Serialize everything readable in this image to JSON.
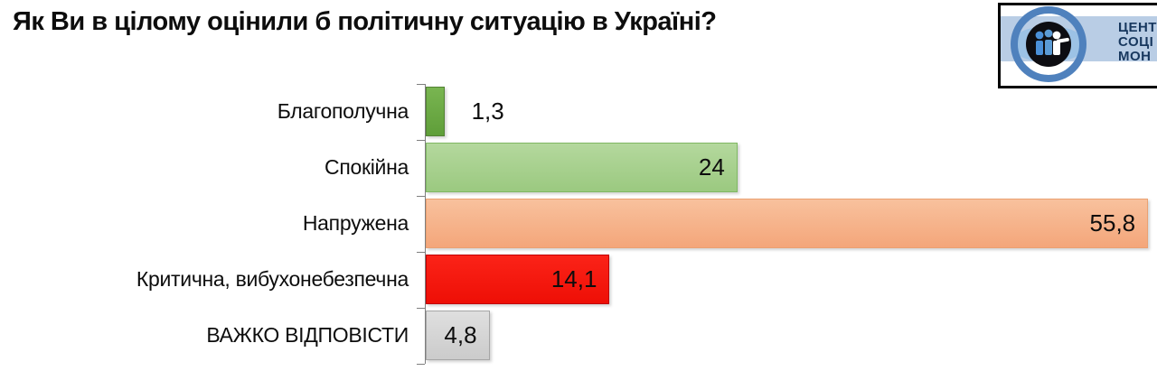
{
  "title": "Як Ви в цілому оцінили б політичну ситуацію в Україні?",
  "logo": {
    "text_lines": [
      "ЦЕНТ",
      "СОЦІ",
      "МОН"
    ],
    "colors": {
      "ring": "#4f81bd",
      "band": "#b9cde5",
      "lens": "#9cc2e5",
      "emblem_bg": "#0d0d12",
      "figure_left": "#4a90d9",
      "figure_middle": "#5b9bd5",
      "figure_right": "#ffffff",
      "text": "#17375e",
      "border": "#000000"
    }
  },
  "chart_data": {
    "type": "bar",
    "orientation": "horizontal",
    "title": "Як Ви в цілому оцінили б політичну ситуацію в Україні?",
    "categories": [
      "Благополучна",
      "Спокійна",
      "Напружена",
      "Критична, вибухонебезпечна",
      "ВАЖКО ВІДПОВІСТИ"
    ],
    "values": [
      1.3,
      24,
      55.8,
      14.1,
      4.8
    ],
    "value_labels": [
      "1,3",
      "24",
      "55,8",
      "14,1",
      "4,8"
    ],
    "bar_colors": [
      "#6cab44",
      "#a9d18e",
      "#f5ae84",
      "#f41610",
      "#d6d6d6"
    ],
    "bar_gradients": [
      [
        "#79b551",
        "#5f9e39"
      ],
      [
        "#b4d89d",
        "#9bc980"
      ],
      [
        "#f8c19d",
        "#f4a67a"
      ],
      [
        "#fb2318",
        "#ee0f06"
      ],
      [
        "#dfdfdf",
        "#cbcbcb"
      ]
    ],
    "bar_border_colors": [
      "#538234",
      "#7fb863",
      "#eaa172",
      "#c00000",
      "#a6a6a6"
    ],
    "xlim": [
      0,
      56
    ],
    "axis_color": "#7f7f7f",
    "grid": false,
    "legend": false,
    "decimal_separator": ","
  }
}
